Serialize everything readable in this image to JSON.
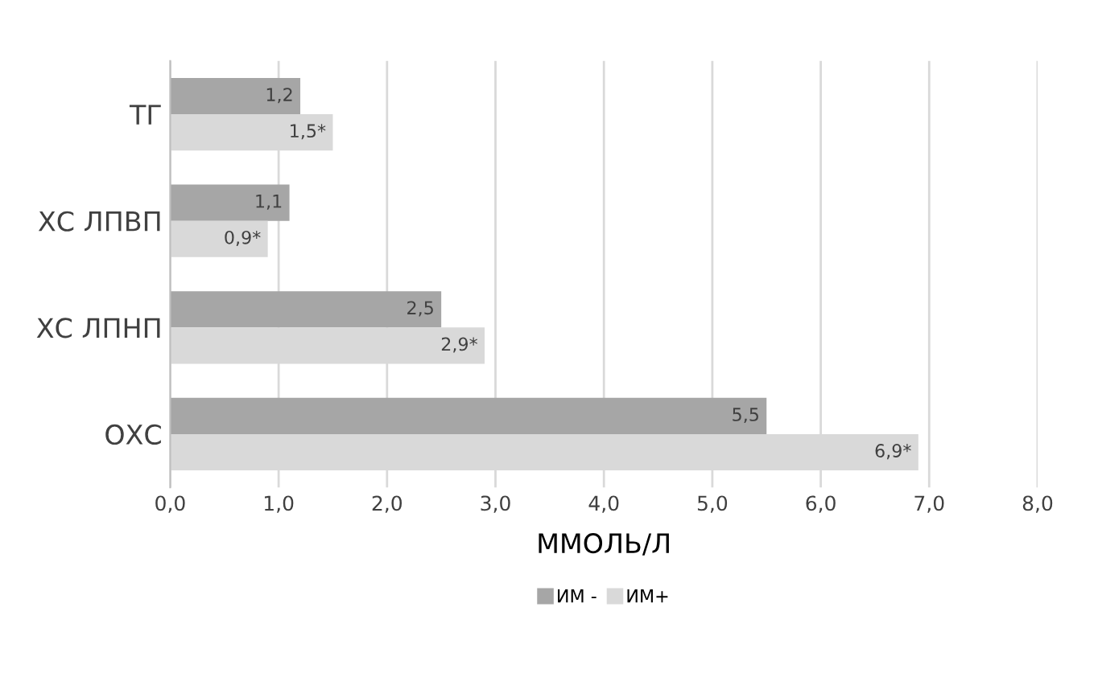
{
  "chart_data": {
    "type": "bar",
    "orientation": "horizontal",
    "categories": [
      "ТГ",
      "ХС ЛПВП",
      "ХС ЛПНП",
      "ОХС"
    ],
    "series": [
      {
        "name": "ИМ -",
        "color": "#a6a6a6",
        "values": [
          1.2,
          1.1,
          2.5,
          5.5
        ],
        "value_labels": [
          "1,2",
          "1,1",
          "2,5",
          "5,5"
        ]
      },
      {
        "name": "ИМ+",
        "color": "#d9d9d9",
        "values": [
          1.5,
          0.9,
          2.9,
          6.9
        ],
        "value_labels": [
          "1,5*",
          "0,9*",
          "2,9*",
          "6,9*"
        ]
      }
    ],
    "xlabel": "ММОЛЬ/Л",
    "xlim": [
      0,
      8
    ],
    "xticks": [
      {
        "value": 0,
        "label": "0,0"
      },
      {
        "value": 1,
        "label": "1,0"
      },
      {
        "value": 2,
        "label": "2,0"
      },
      {
        "value": 3,
        "label": "3,0"
      },
      {
        "value": 4,
        "label": "4,0"
      },
      {
        "value": 5,
        "label": "5,0"
      },
      {
        "value": 6,
        "label": "6,0"
      },
      {
        "value": 7,
        "label": "7,0"
      },
      {
        "value": 8,
        "label": "8,0"
      }
    ],
    "grid": "x",
    "legend": "bottom"
  }
}
